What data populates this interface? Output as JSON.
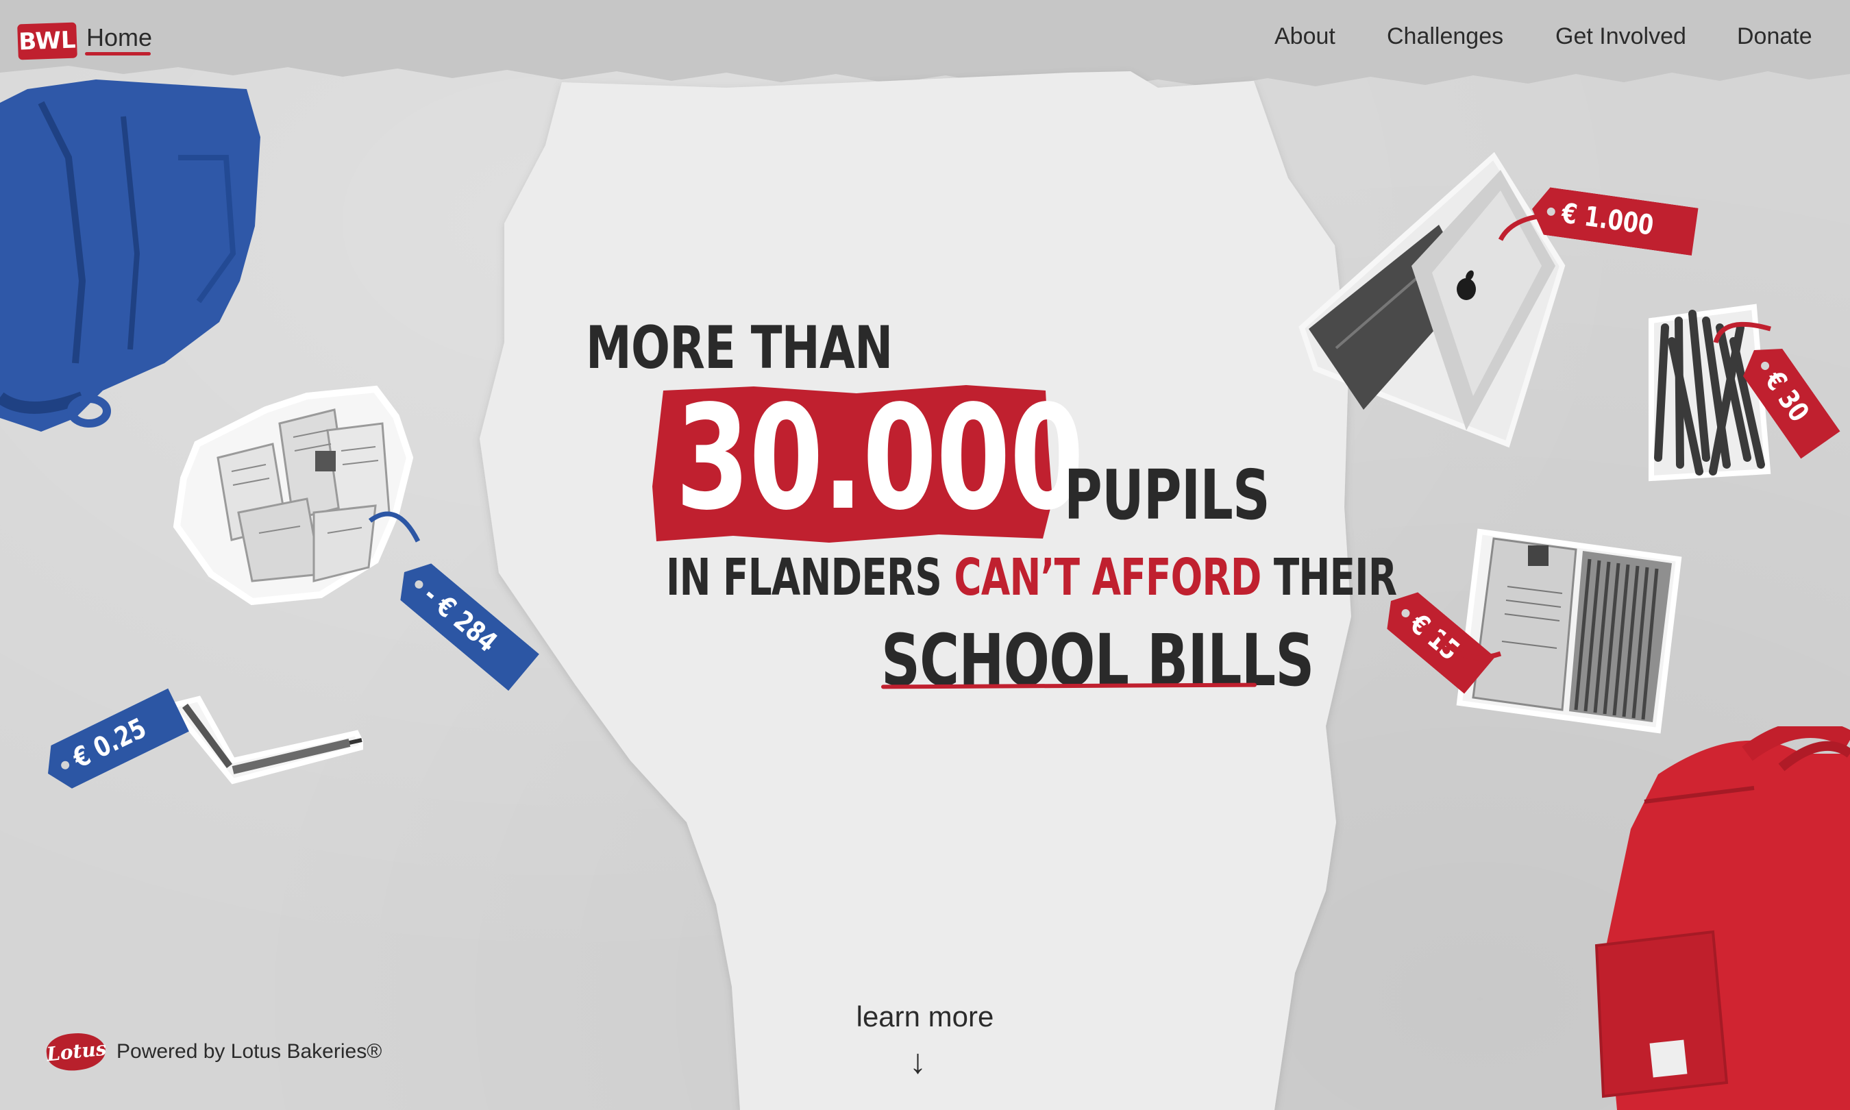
{
  "nav": {
    "logo": "BWL",
    "home": "Home",
    "items": [
      "About",
      "Challenges",
      "Get Involved",
      "Donate"
    ]
  },
  "hero": {
    "line1": "MORE THAN",
    "big_number": "30.000",
    "line2_suffix": "PUPILS",
    "line3_part1": "IN FLANDERS",
    "line3_highlight": "CAN’T AFFORD",
    "line3_part2": "THEIR",
    "line4": "SCHOOL BILLS"
  },
  "price_tags": {
    "laptop": "€ 1.000",
    "markers": "€ 30",
    "pencil_tin": "€ 15",
    "receipts": "- € 284",
    "pencil": "€ 0.25"
  },
  "cta": {
    "label": "learn more",
    "arrow": "↓"
  },
  "footer": {
    "brand_logo": "Lotus",
    "powered_by": "Powered by Lotus Bakeries®"
  },
  "colors": {
    "accent_red": "#c0202f",
    "accent_blue": "#2c56a4",
    "text_dark": "#2a2a2a",
    "background": "#d5d5d5",
    "paper": "#ececec"
  },
  "icons": [
    "apple-logo-icon",
    "arrow-down-icon"
  ]
}
